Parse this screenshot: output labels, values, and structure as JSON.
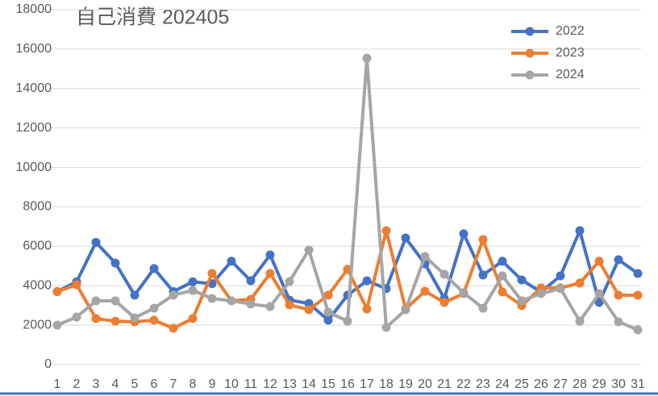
{
  "chart_data": {
    "type": "line",
    "title": "自己消費 202405",
    "categories": [
      "1",
      "2",
      "3",
      "4",
      "5",
      "6",
      "7",
      "8",
      "9",
      "10",
      "11",
      "12",
      "13",
      "14",
      "15",
      "16",
      "17",
      "18",
      "19",
      "20",
      "21",
      "22",
      "23",
      "24",
      "25",
      "26",
      "27",
      "28",
      "29",
      "30",
      "31"
    ],
    "series": [
      {
        "name": "2022",
        "color": "#4472c4",
        "values": [
          3700,
          4200,
          6200,
          5150,
          3520,
          4870,
          3700,
          4200,
          4100,
          5240,
          4250,
          5560,
          3270,
          3100,
          2250,
          3520,
          4250,
          3850,
          6420,
          5110,
          3350,
          6630,
          4540,
          5240,
          4290,
          3680,
          4500,
          6790,
          3150,
          5320,
          4620
        ]
      },
      {
        "name": "2023",
        "color": "#ed7d31",
        "values": [
          3700,
          4050,
          2330,
          2200,
          2170,
          2250,
          1840,
          2330,
          4620,
          3230,
          3310,
          4620,
          3030,
          2780,
          3520,
          4830,
          2820,
          6790,
          2820,
          3720,
          3150,
          3600,
          6340,
          3680,
          2990,
          3890,
          3890,
          4130,
          5240,
          3520,
          3520
        ]
      },
      {
        "name": "2024",
        "color": "#a5a5a5",
        "values": [
          2000,
          2410,
          3230,
          3230,
          2370,
          2860,
          3520,
          3760,
          3350,
          3230,
          3070,
          2940,
          4210,
          5810,
          2660,
          2200,
          15540,
          1880,
          2780,
          5480,
          4580,
          3640,
          2860,
          4500,
          3230,
          3600,
          3850,
          2200,
          3600,
          2170,
          1760
        ]
      }
    ],
    "ylim": [
      0,
      18000
    ],
    "yticks": [
      0,
      2000,
      4000,
      6000,
      8000,
      10000,
      12000,
      14000,
      16000,
      18000
    ],
    "grid": true,
    "legend": "top-right"
  }
}
